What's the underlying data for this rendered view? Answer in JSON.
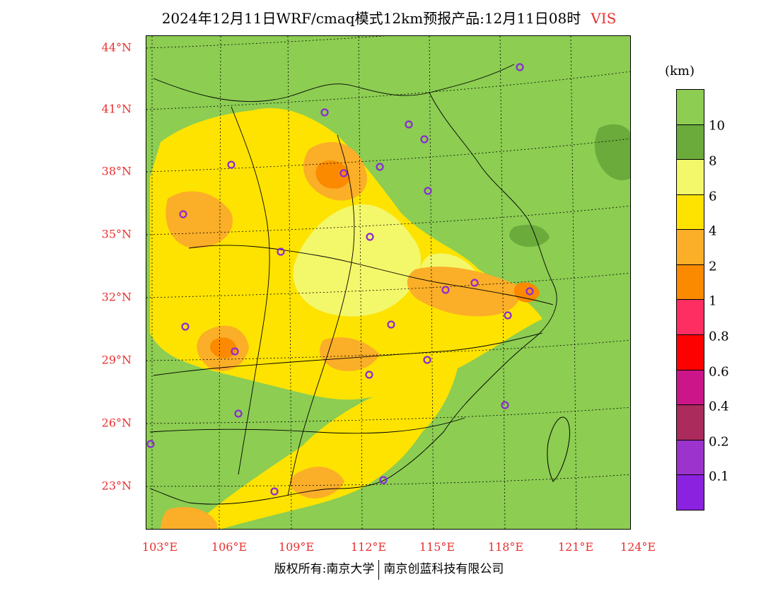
{
  "title": {
    "main": "2024年12月11日WRF/cmaq模式12km预报产品:12月11日08时",
    "variable": "VIS"
  },
  "axes": {
    "lat_labels": [
      "44°N",
      "41°N",
      "38°N",
      "35°N",
      "32°N",
      "29°N",
      "26°N",
      "23°N"
    ],
    "lon_labels": [
      "103°E",
      "106°E",
      "109°E",
      "112°E",
      "115°E",
      "118°E",
      "121°E",
      "124°E"
    ]
  },
  "legend": {
    "unit": "(km)",
    "labels": [
      "10",
      "8",
      "6",
      "4",
      "2",
      "1",
      "0.8",
      "0.6",
      "0.4",
      "0.2",
      "0.1"
    ],
    "colors": [
      "#8ccd52",
      "#6aab3c",
      "#f3f76a",
      "#fee300",
      "#fbae28",
      "#fb8a01",
      "#fe2e62",
      "#fd0000",
      "#cc1589",
      "#ab2b5c",
      "#9b33cc",
      "#8a22e0"
    ]
  },
  "footer": {
    "left": "版权所有:南京大学",
    "right": "南京创蓝科技有限公司"
  }
}
